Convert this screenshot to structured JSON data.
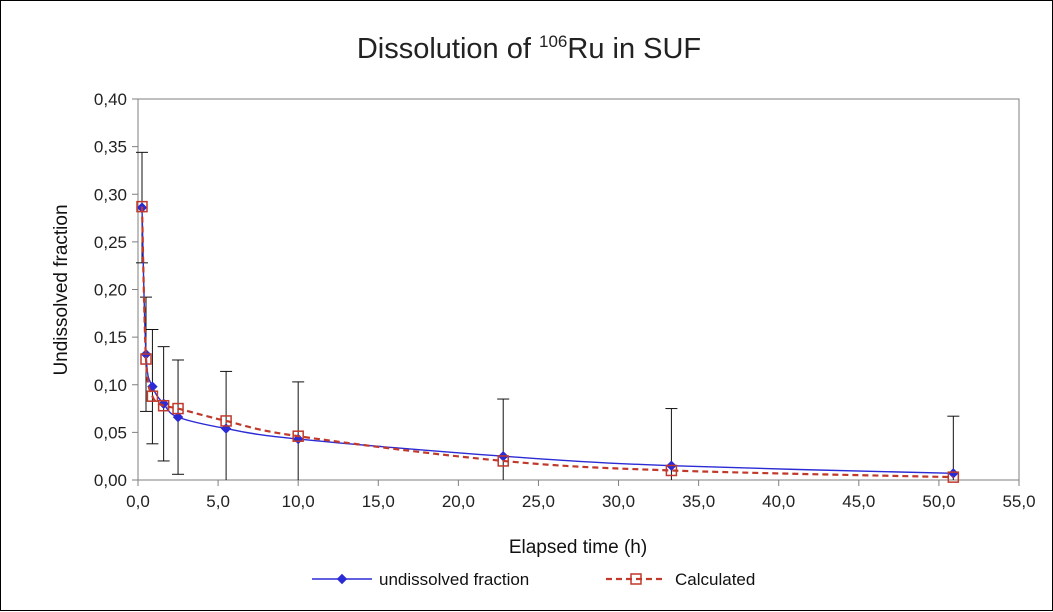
{
  "chart_data": {
    "type": "line",
    "title": {
      "prefix": "Dissolution of ",
      "superscript": "106",
      "suffix": "Ru in SUF"
    },
    "xlabel": "Elapsed time (h)",
    "ylabel": "Undissolved  fraction",
    "xlim": [
      0,
      55
    ],
    "ylim": [
      0,
      0.4
    ],
    "x_ticks": [
      "0,0",
      "5,0",
      "10,0",
      "15,0",
      "20,0",
      "25,0",
      "30,0",
      "35,0",
      "40,0",
      "45,0",
      "50,0",
      "55,0"
    ],
    "y_ticks": [
      "0,00",
      "0,05",
      "0,10",
      "0,15",
      "0,20",
      "0,25",
      "0,30",
      "0,35",
      "0,40"
    ],
    "grid": false,
    "legend_position": "bottom",
    "series": [
      {
        "name": "undissolved fraction",
        "color": "#2b2bd6",
        "line_style": "solid",
        "marker": "diamond",
        "points": [
          {
            "x": 0.25,
            "y": 0.286,
            "err": 0.058
          },
          {
            "x": 0.5,
            "y": 0.132,
            "err": 0.06
          },
          {
            "x": 0.9,
            "y": 0.098,
            "err": 0.06
          },
          {
            "x": 1.6,
            "y": 0.08,
            "err": 0.06
          },
          {
            "x": 2.5,
            "y": 0.066,
            "err": 0.06
          },
          {
            "x": 5.5,
            "y": 0.054,
            "err": 0.06
          },
          {
            "x": 10.0,
            "y": 0.043,
            "err": 0.06
          },
          {
            "x": 22.8,
            "y": 0.025,
            "err": 0.06
          },
          {
            "x": 33.3,
            "y": 0.015,
            "err": 0.06
          },
          {
            "x": 50.9,
            "y": 0.007,
            "err": 0.06
          }
        ]
      },
      {
        "name": "Calculated",
        "color": "#c0392b",
        "line_style": "dashed",
        "marker": "square",
        "points": [
          {
            "x": 0.25,
            "y": 0.287
          },
          {
            "x": 0.5,
            "y": 0.127
          },
          {
            "x": 0.9,
            "y": 0.088
          },
          {
            "x": 1.6,
            "y": 0.078
          },
          {
            "x": 2.5,
            "y": 0.075
          },
          {
            "x": 5.5,
            "y": 0.062
          },
          {
            "x": 10.0,
            "y": 0.046
          },
          {
            "x": 22.8,
            "y": 0.02
          },
          {
            "x": 33.3,
            "y": 0.01
          },
          {
            "x": 50.9,
            "y": 0.003
          }
        ]
      }
    ]
  }
}
